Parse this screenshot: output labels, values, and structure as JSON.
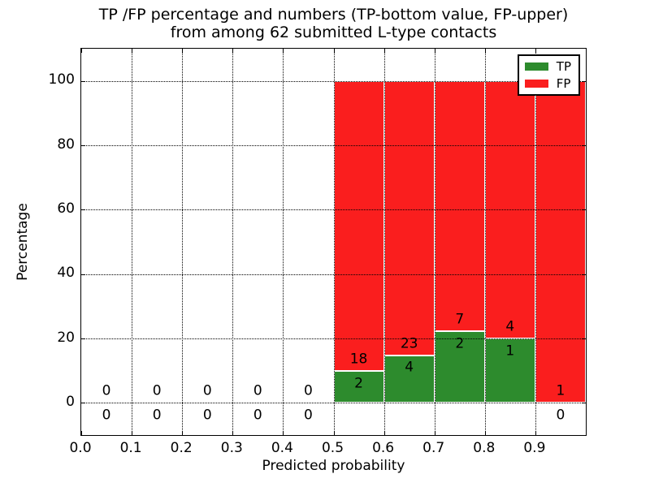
{
  "chart_data": {
    "type": "bar",
    "stacked": true,
    "title_lines": [
      "TP /FP percentage and numbers (TP-bottom value, FP-upper)",
      "from among 62 submitted L-type contacts"
    ],
    "xlabel": "Predicted probability",
    "ylabel": "Percentage",
    "xlim": [
      0.0,
      1.0
    ],
    "ylim": [
      -10,
      110
    ],
    "grid": true,
    "grid_style": "dotted",
    "legend_position": "upper right",
    "xtick_labels": [
      "0.0",
      "0.1",
      "0.2",
      "0.3",
      "0.4",
      "0.5",
      "0.6",
      "0.7",
      "0.8",
      "0.9"
    ],
    "xtick_values": [
      0.0,
      0.1,
      0.2,
      0.3,
      0.4,
      0.5,
      0.6,
      0.7,
      0.8,
      0.9
    ],
    "ytick_labels": [
      "0",
      "20",
      "40",
      "60",
      "80",
      "100"
    ],
    "ytick_values": [
      0,
      20,
      40,
      60,
      80,
      100
    ],
    "bin_starts": [
      0.0,
      0.1,
      0.2,
      0.3,
      0.4,
      0.5,
      0.6,
      0.7,
      0.8,
      0.9
    ],
    "bin_width": 0.1,
    "series": [
      {
        "name": "TP",
        "color": "#2d8b2d",
        "counts": [
          0,
          0,
          0,
          0,
          0,
          2,
          4,
          2,
          1,
          0
        ]
      },
      {
        "name": "FP",
        "color": "#fa1e1e",
        "counts": [
          0,
          0,
          0,
          0,
          0,
          18,
          23,
          7,
          4,
          1
        ]
      }
    ],
    "stacked_bar_total_percent": 100,
    "tp_percent_by_bin": [
      null,
      null,
      null,
      null,
      null,
      10.0,
      14.8,
      22.2,
      20.0,
      0.0
    ],
    "annotation_rule": "FP count above TP-segment top, TP count below it; zeros shown for empty bins",
    "annotation_offsets_percent": {
      "fp": 3.5,
      "tp": -4.0
    }
  },
  "colors": {
    "background": "#ffffff",
    "axes": "#000000",
    "text": "#000000",
    "bar_edge": "#ffffff",
    "tp_green": "#2d8b2d",
    "fp_red": "#fa1e1e"
  }
}
